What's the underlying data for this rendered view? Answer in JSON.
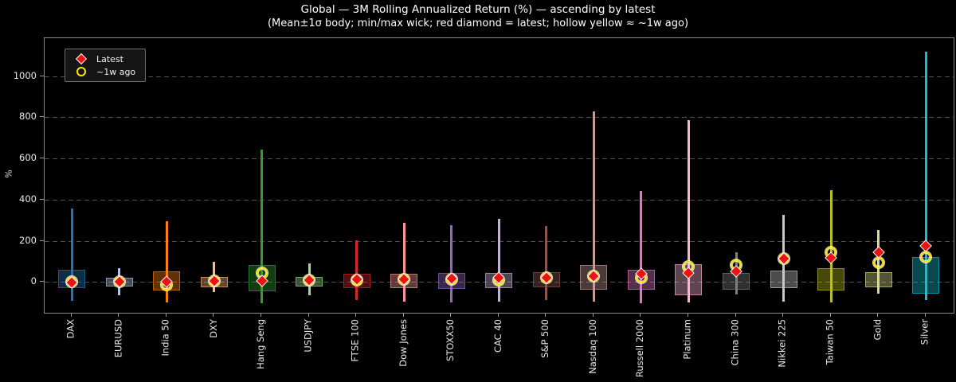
{
  "title": "Global — 3M Rolling Annualized Return (%) — ascending by latest",
  "subtitle": "(Mean±1σ body; min/max wick; red diamond = latest; hollow yellow ≈ ~1w ago)",
  "legend": {
    "latest_label": "Latest",
    "week_ago_label": "~1w ago",
    "position": "upper left"
  },
  "colors": {
    "background": "#000000",
    "latest_marker": "#ee1111",
    "week_ago_marker": "#ffe800",
    "grid": "#4f4f4f",
    "frame": "#8a8a8a",
    "text": "#e8e8e8"
  },
  "chart_data": {
    "type": "candlestick-range",
    "title": "Global — 3M Rolling Annualized Return (%) — ascending by latest",
    "subtitle": "(Mean±1σ body; min/max wick; red diamond = latest; hollow yellow ≈ ~1w ago)",
    "ylabel": "%",
    "yticks": [
      0,
      200,
      400,
      600,
      800,
      1000
    ],
    "ylim": [
      -150,
      1185
    ],
    "grid": "dashed-horizontal",
    "legend_position": "upper-left",
    "categories": [
      "DAX",
      "EURUSD",
      "India 50",
      "DXY",
      "Hang Seng",
      "USDJPY",
      "FTSE 100",
      "Dow Jones",
      "STOXX50",
      "CAC 40",
      "S&P 500",
      "Nasdaq 100",
      "Russell 2000",
      "Platinum",
      "China 300",
      "Nikkei 225",
      "Taiwan 50",
      "Gold",
      "Silver"
    ],
    "instruments": [
      {
        "label": "DAX",
        "color": "#1f77b4",
        "min": -93,
        "body_low": -32,
        "body_high": 58,
        "max": 357,
        "latest": -2,
        "week_ago": 0
      },
      {
        "label": "EURUSD",
        "color": "#aec7e8",
        "min": -65,
        "body_low": -23,
        "body_high": 22,
        "max": 68,
        "latest": -1,
        "week_ago": -1
      },
      {
        "label": "India 50",
        "color": "#ff7f0e",
        "min": -100,
        "body_low": -40,
        "body_high": 52,
        "max": 294,
        "latest": 1,
        "week_ago": -16
      },
      {
        "label": "DXY",
        "color": "#ffbb78",
        "min": -48,
        "body_low": -26,
        "body_high": 23,
        "max": 97,
        "latest": 3,
        "week_ago": 3
      },
      {
        "label": "Hang Seng",
        "color": "#2ca02c",
        "min": -103,
        "body_low": -45,
        "body_high": 81,
        "max": 645,
        "latest": 5,
        "week_ago": 45
      },
      {
        "label": "USDJPY",
        "color": "#98df8a",
        "min": -65,
        "body_low": -22,
        "body_high": 25,
        "max": 90,
        "latest": 7,
        "week_ago": 7
      },
      {
        "label": "FTSE 100",
        "color": "#d62728",
        "min": -90,
        "body_low": -30,
        "body_high": 39,
        "max": 203,
        "latest": 13,
        "week_ago": 10
      },
      {
        "label": "Dow Jones",
        "color": "#ff9896",
        "min": -97,
        "body_low": -30,
        "body_high": 41,
        "max": 288,
        "latest": 14,
        "week_ago": 11
      },
      {
        "label": "STOXX50",
        "color": "#9467bd",
        "min": -99,
        "body_low": -35,
        "body_high": 45,
        "max": 277,
        "latest": 15,
        "week_ago": 12
      },
      {
        "label": "CAC 40",
        "color": "#c5b0d5",
        "min": -94,
        "body_low": -32,
        "body_high": 45,
        "max": 305,
        "latest": 20,
        "week_ago": 9
      },
      {
        "label": "S&P 500",
        "color": "#8c564b",
        "min": -87,
        "body_low": -26,
        "body_high": 48,
        "max": 273,
        "latest": 21,
        "week_ago": 21
      },
      {
        "label": "Nasdaq 100",
        "color": "#c49c94",
        "min": -97,
        "body_low": -39,
        "body_high": 84,
        "max": 830,
        "latest": 29,
        "week_ago": 29
      },
      {
        "label": "Russell 2000",
        "color": "#e377c2",
        "min": -103,
        "body_low": -39,
        "body_high": 58,
        "max": 442,
        "latest": 38,
        "week_ago": 20
      },
      {
        "label": "Platinum",
        "color": "#f7b6d2",
        "min": -99,
        "body_low": -65,
        "body_high": 87,
        "max": 788,
        "latest": 42,
        "week_ago": 75
      },
      {
        "label": "China 300",
        "color": "#7f7f7f",
        "min": -61,
        "body_low": -39,
        "body_high": 45,
        "max": 144,
        "latest": 52,
        "week_ago": 84
      },
      {
        "label": "Nikkei 225",
        "color": "#c7c7c7",
        "min": -94,
        "body_low": -32,
        "body_high": 54,
        "max": 325,
        "latest": 112,
        "week_ago": 112
      },
      {
        "label": "Taiwan 50",
        "color": "#bcbd22",
        "min": -99,
        "body_low": -43,
        "body_high": 67,
        "max": 447,
        "latest": 118,
        "week_ago": 144
      },
      {
        "label": "Gold",
        "color": "#dbdb8d",
        "min": -58,
        "body_low": -26,
        "body_high": 48,
        "max": 251,
        "latest": 144,
        "week_ago": 93
      },
      {
        "label": "Silver",
        "color": "#17becf",
        "min": -90,
        "body_low": -58,
        "body_high": 120,
        "max": 1119,
        "latest": 175,
        "week_ago": 120
      }
    ]
  }
}
